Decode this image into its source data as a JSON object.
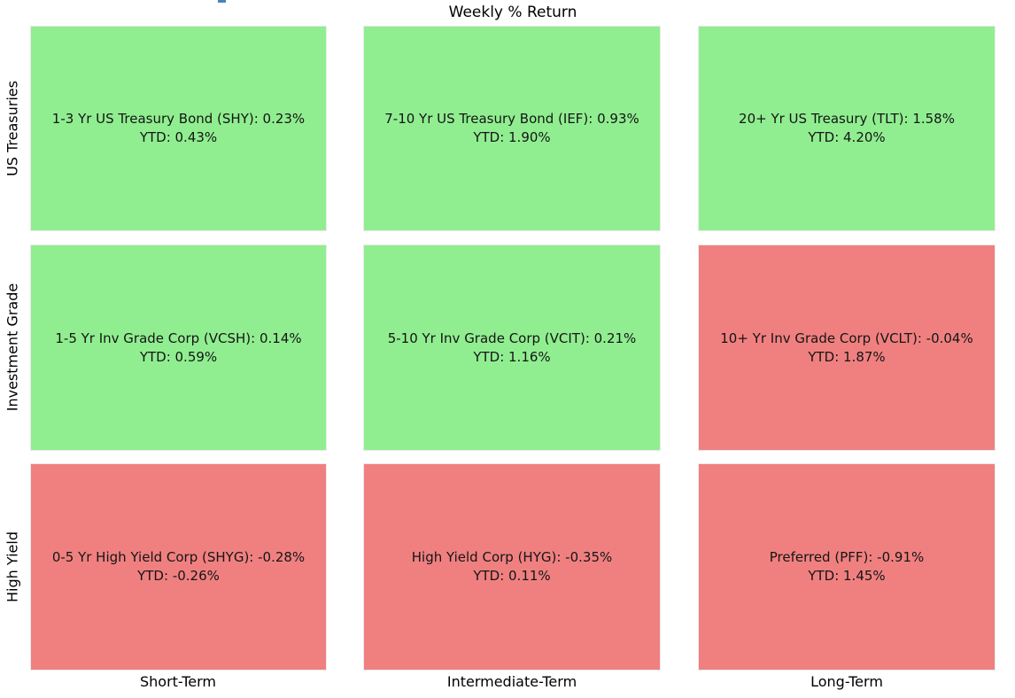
{
  "title": "Weekly % Return",
  "colors": {
    "positive_cell": "#90ee90",
    "negative_cell": "#f08080",
    "clipped_link_fragment": "#4d7fbe",
    "text": "#000000"
  },
  "row_labels": [
    "US Treasuries",
    "Investment Grade",
    "High Yield"
  ],
  "col_labels": [
    "Short-Term",
    "Intermediate-Term",
    "Long-Term"
  ],
  "grid": {
    "cells": [
      {
        "line1": "1-3 Yr US Treasury Bond (SHY): 0.23%",
        "line2": "YTD: 0.43%",
        "state": "positive"
      },
      {
        "line1": "7-10 Yr US Treasury Bond (IEF): 0.93%",
        "line2": "YTD: 1.90%",
        "state": "positive"
      },
      {
        "line1": "20+ Yr US Treasury (TLT): 1.58%",
        "line2": "YTD: 4.20%",
        "state": "positive"
      },
      {
        "line1": "1-5 Yr Inv Grade Corp (VCSH): 0.14%",
        "line2": "YTD: 0.59%",
        "state": "positive"
      },
      {
        "line1": "5-10 Yr Inv Grade Corp (VCIT): 0.21%",
        "line2": "YTD: 1.16%",
        "state": "positive"
      },
      {
        "line1": "10+ Yr Inv Grade Corp (VCLT): -0.04%",
        "line2": "YTD: 1.87%",
        "state": "negative"
      },
      {
        "line1": "0-5 Yr High Yield Corp (SHYG): -0.28%",
        "line2": "YTD: -0.26%",
        "state": "negative"
      },
      {
        "line1": "High Yield Corp (HYG): -0.35%",
        "line2": "YTD: 0.11%",
        "state": "negative"
      },
      {
        "line1": "Preferred (PFF): -0.91%",
        "line2": "YTD: 1.45%",
        "state": "negative"
      }
    ]
  },
  "chart_data": {
    "type": "heatmap",
    "title": "Weekly % Return",
    "rows": [
      "US Treasuries",
      "Investment Grade",
      "High Yield"
    ],
    "columns": [
      "Short-Term",
      "Intermediate-Term",
      "Long-Term"
    ],
    "color_rule": "cell is green (#90ee90) when weekly return >= 0, red (#f08080) when weekly return < 0",
    "cells": [
      {
        "row": "US Treasuries",
        "column": "Short-Term",
        "name": "1-3 Yr US Treasury Bond",
        "ticker": "SHY",
        "weekly_pct": 0.23,
        "ytd_pct": 0.43,
        "color": "#90ee90"
      },
      {
        "row": "US Treasuries",
        "column": "Intermediate-Term",
        "name": "7-10 Yr US Treasury Bond",
        "ticker": "IEF",
        "weekly_pct": 0.93,
        "ytd_pct": 1.9,
        "color": "#90ee90"
      },
      {
        "row": "US Treasuries",
        "column": "Long-Term",
        "name": "20+ Yr US Treasury",
        "ticker": "TLT",
        "weekly_pct": 1.58,
        "ytd_pct": 4.2,
        "color": "#90ee90"
      },
      {
        "row": "Investment Grade",
        "column": "Short-Term",
        "name": "1-5 Yr Inv Grade Corp",
        "ticker": "VCSH",
        "weekly_pct": 0.14,
        "ytd_pct": 0.59,
        "color": "#90ee90"
      },
      {
        "row": "Investment Grade",
        "column": "Intermediate-Term",
        "name": "5-10 Yr Inv Grade Corp",
        "ticker": "VCIT",
        "weekly_pct": 0.21,
        "ytd_pct": 1.16,
        "color": "#90ee90"
      },
      {
        "row": "Investment Grade",
        "column": "Long-Term",
        "name": "10+ Yr Inv Grade Corp",
        "ticker": "VCLT",
        "weekly_pct": -0.04,
        "ytd_pct": 1.87,
        "color": "#f08080"
      },
      {
        "row": "High Yield",
        "column": "Short-Term",
        "name": "0-5 Yr High Yield Corp",
        "ticker": "SHYG",
        "weekly_pct": -0.28,
        "ytd_pct": -0.26,
        "color": "#f08080"
      },
      {
        "row": "High Yield",
        "column": "Intermediate-Term",
        "name": "High Yield Corp",
        "ticker": "HYG",
        "weekly_pct": -0.35,
        "ytd_pct": 0.11,
        "color": "#f08080"
      },
      {
        "row": "High Yield",
        "column": "Long-Term",
        "name": "Preferred",
        "ticker": "PFF",
        "weekly_pct": -0.91,
        "ytd_pct": 1.45,
        "color": "#f08080"
      }
    ],
    "layout": {
      "grid": "3x3",
      "row_labels_position": "left-rotated",
      "column_labels_position": "bottom",
      "legend": false
    }
  }
}
